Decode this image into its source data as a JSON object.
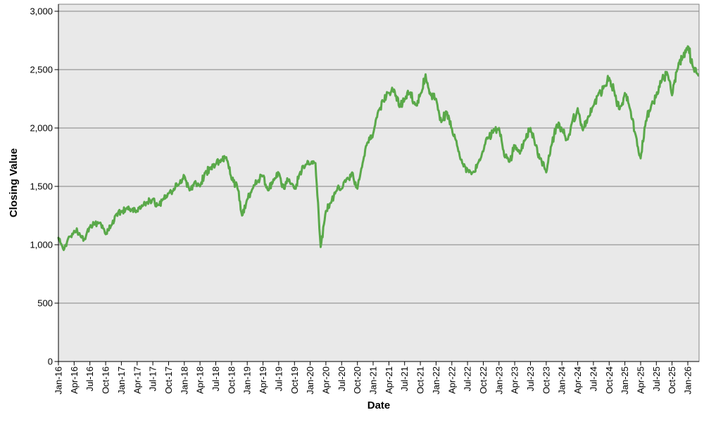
{
  "chart_data": {
    "type": "line",
    "title": "",
    "xlabel": "Date",
    "ylabel": "Closing Value",
    "legend": "none",
    "grid": "horizontal",
    "ylim": [
      0,
      3060
    ],
    "y_ticks": [
      0,
      500,
      1000,
      1500,
      2000,
      2500,
      3000
    ],
    "y_tick_labels": [
      "0",
      "500",
      "1,000",
      "1,500",
      "2,000",
      "2,500",
      "3,000"
    ],
    "x_tick_labels": [
      "Jan-16",
      "Apr-16",
      "Jul-16",
      "Oct-16",
      "Jan-17",
      "Apr-17",
      "Jul-17",
      "Oct-17",
      "Jan-18",
      "Apr-18",
      "Jul-18",
      "Oct-18",
      "Jan-19",
      "Apr-19",
      "Jul-19",
      "Oct-19",
      "Jan-20",
      "Apr-20",
      "Jul-20",
      "Oct-20",
      "Jan-21",
      "Apr-21",
      "Jul-21",
      "Oct-21",
      "Jan-22",
      "Apr-22",
      "Jul-22",
      "Oct-22",
      "Jan-23",
      "Apr-23",
      "Jul-23",
      "Oct-23",
      "Jan-24",
      "Apr-24",
      "Jul-24",
      "Oct-24",
      "Jan-25",
      "Apr-25",
      "Jul-25",
      "Oct-25",
      "Jan-26"
    ],
    "x_range": {
      "start": "Jan-16",
      "end": "Mar-26",
      "sampling": "monthly estimates of a daily series"
    },
    "series": [
      {
        "name": "Closing Value",
        "color": "#5aa94a",
        "values": [
          1060,
          955,
          1070,
          1120,
          1100,
          1045,
          1150,
          1185,
          1190,
          1090,
          1160,
          1260,
          1280,
          1310,
          1300,
          1285,
          1330,
          1365,
          1390,
          1340,
          1395,
          1440,
          1480,
          1520,
          1590,
          1465,
          1540,
          1500,
          1620,
          1650,
          1690,
          1730,
          1750,
          1560,
          1520,
          1250,
          1390,
          1480,
          1540,
          1590,
          1465,
          1560,
          1615,
          1480,
          1560,
          1480,
          1610,
          1670,
          1690,
          1700,
          980,
          1290,
          1360,
          1460,
          1480,
          1570,
          1620,
          1480,
          1700,
          1880,
          1950,
          2150,
          2230,
          2300,
          2330,
          2180,
          2250,
          2300,
          2200,
          2290,
          2460,
          2280,
          2250,
          2050,
          2140,
          2000,
          1850,
          1700,
          1640,
          1620,
          1700,
          1800,
          1920,
          1990,
          2000,
          1760,
          1710,
          1850,
          1780,
          1900,
          2000,
          1850,
          1740,
          1620,
          1850,
          2030,
          1990,
          1900,
          2060,
          2170,
          1980,
          2100,
          2190,
          2300,
          2360,
          2430,
          2310,
          2160,
          2300,
          2160,
          1950,
          1740,
          2060,
          2190,
          2280,
          2400,
          2480,
          2280,
          2500,
          2610,
          2700,
          2520,
          2450
        ]
      }
    ],
    "colors": {
      "plot_bg": "#e9e9e9",
      "gridline": "#848484",
      "border": "#848484",
      "axis": "#000000",
      "text": "#000000",
      "page_bg": "#ffffff"
    }
  }
}
